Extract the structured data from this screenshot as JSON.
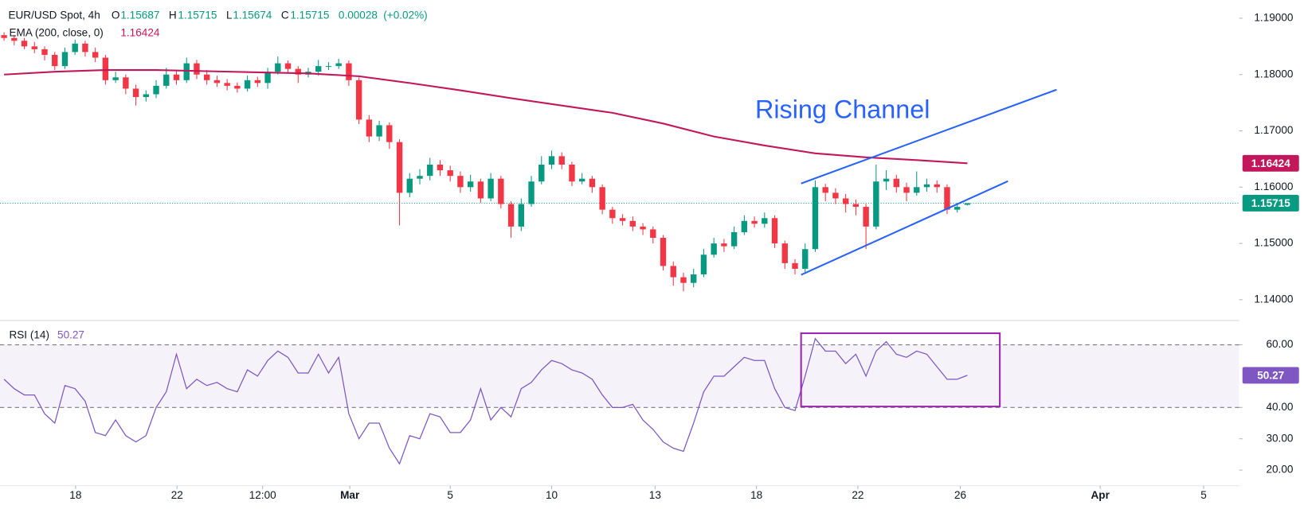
{
  "chart_data": [
    {
      "type": "candlestick",
      "title": "EUR/USD Spot, 4h",
      "ohlc_prefixes": [
        "O",
        "H",
        "L",
        "C"
      ],
      "change": 0.00028,
      "change_pct": {
        "value": 0.02,
        "label": "(+0.02%)"
      },
      "x": [
        0,
        1,
        2,
        3,
        4,
        5,
        6,
        7,
        8,
        9,
        10,
        11,
        12,
        13,
        14,
        15,
        16,
        17,
        18,
        19,
        20,
        21,
        22,
        23,
        24,
        25,
        26,
        27,
        28,
        29,
        30,
        31,
        32,
        33,
        34,
        35,
        36,
        37,
        38,
        39,
        40,
        41,
        42,
        43,
        44,
        45,
        46,
        47,
        48,
        49,
        50,
        51,
        52,
        53,
        54,
        55,
        56,
        57,
        58,
        59,
        60,
        61,
        62,
        63,
        64,
        65,
        66,
        67,
        68,
        69,
        70,
        71,
        72,
        73,
        74,
        75,
        76,
        77,
        78,
        79,
        80,
        81,
        82,
        83,
        84,
        85,
        86,
        87,
        88,
        89,
        90,
        91,
        92,
        93,
        94,
        95
      ],
      "open": [
        1.187,
        1.1865,
        1.186,
        1.185,
        1.1845,
        1.1835,
        1.1815,
        1.184,
        1.1855,
        1.184,
        1.183,
        1.179,
        1.1795,
        1.1775,
        1.176,
        1.1765,
        1.178,
        1.18,
        1.179,
        1.182,
        1.18,
        1.179,
        1.1785,
        1.178,
        1.1775,
        1.179,
        1.1785,
        1.1805,
        1.182,
        1.181,
        1.18,
        1.1805,
        1.1815,
        1.1815,
        1.182,
        1.179,
        1.172,
        1.169,
        1.171,
        1.168,
        1.159,
        1.1615,
        1.162,
        1.164,
        1.163,
        1.162,
        1.16,
        1.161,
        1.158,
        1.1615,
        1.157,
        1.153,
        1.157,
        1.161,
        1.164,
        1.1655,
        1.164,
        1.161,
        1.1615,
        1.16,
        1.156,
        1.1545,
        1.154,
        1.153,
        1.1525,
        1.151,
        1.146,
        1.144,
        1.143,
        1.1445,
        1.148,
        1.15,
        1.1495,
        1.152,
        1.154,
        1.1535,
        1.1545,
        1.15,
        1.1465,
        1.1455,
        1.149,
        1.16,
        1.159,
        1.158,
        1.157,
        1.1565,
        1.153,
        1.161,
        1.1615,
        1.16,
        1.159,
        1.16,
        1.1605,
        1.16,
        1.156,
        1.15687
      ],
      "high": [
        1.1875,
        1.187,
        1.1865,
        1.1858,
        1.185,
        1.184,
        1.1848,
        1.1862,
        1.186,
        1.1848,
        1.1835,
        1.1805,
        1.18,
        1.1782,
        1.1772,
        1.179,
        1.1812,
        1.1806,
        1.183,
        1.1826,
        1.1808,
        1.1798,
        1.1792,
        1.1786,
        1.1798,
        1.1796,
        1.1812,
        1.1832,
        1.1825,
        1.1815,
        1.1812,
        1.1826,
        1.1822,
        1.1828,
        1.1825,
        1.1795,
        1.1728,
        1.1718,
        1.1715,
        1.1685,
        1.1625,
        1.1632,
        1.1652,
        1.1648,
        1.1638,
        1.1628,
        1.1622,
        1.1615,
        1.1625,
        1.162,
        1.1575,
        1.158,
        1.162,
        1.1655,
        1.1665,
        1.1662,
        1.1645,
        1.1625,
        1.162,
        1.1605,
        1.1565,
        1.1552,
        1.1548,
        1.1536,
        1.153,
        1.1515,
        1.1468,
        1.1448,
        1.1455,
        1.149,
        1.151,
        1.1508,
        1.153,
        1.155,
        1.1548,
        1.1555,
        1.155,
        1.1505,
        1.1472,
        1.15,
        1.1612,
        1.1606,
        1.1598,
        1.1588,
        1.1578,
        1.157,
        1.164,
        1.163,
        1.1622,
        1.1608,
        1.1628,
        1.1615,
        1.1612,
        1.1605,
        1.1572,
        1.15715
      ],
      "low": [
        1.186,
        1.1852,
        1.1845,
        1.1838,
        1.1825,
        1.1808,
        1.181,
        1.1835,
        1.1832,
        1.1822,
        1.1782,
        1.1785,
        1.1765,
        1.1745,
        1.1752,
        1.1758,
        1.1775,
        1.1782,
        1.1785,
        1.1792,
        1.1782,
        1.1778,
        1.1772,
        1.1768,
        1.177,
        1.1778,
        1.1775,
        1.18,
        1.1802,
        1.1785,
        1.1795,
        1.1798,
        1.1808,
        1.181,
        1.178,
        1.1712,
        1.168,
        1.1682,
        1.1668,
        1.1532,
        1.1582,
        1.1605,
        1.1612,
        1.162,
        1.161,
        1.159,
        1.1592,
        1.1572,
        1.1575,
        1.1562,
        1.151,
        1.1522,
        1.1565,
        1.1605,
        1.1632,
        1.1632,
        1.1602,
        1.1605,
        1.159,
        1.1552,
        1.1535,
        1.1532,
        1.1522,
        1.1515,
        1.15,
        1.1452,
        1.1425,
        1.1415,
        1.1422,
        1.144,
        1.1475,
        1.1485,
        1.149,
        1.1515,
        1.1528,
        1.1528,
        1.1492,
        1.1455,
        1.1445,
        1.1448,
        1.1485,
        1.1575,
        1.157,
        1.1555,
        1.155,
        1.149,
        1.1525,
        1.1595,
        1.159,
        1.1575,
        1.1585,
        1.1592,
        1.159,
        1.1552,
        1.1555,
        1.15674
      ],
      "close": [
        1.1865,
        1.186,
        1.185,
        1.1845,
        1.1835,
        1.1815,
        1.184,
        1.1855,
        1.184,
        1.183,
        1.179,
        1.1795,
        1.1775,
        1.176,
        1.1765,
        1.178,
        1.18,
        1.179,
        1.182,
        1.18,
        1.179,
        1.1785,
        1.178,
        1.1775,
        1.179,
        1.1785,
        1.1805,
        1.182,
        1.181,
        1.18,
        1.1805,
        1.1815,
        1.1815,
        1.182,
        1.179,
        1.172,
        1.169,
        1.171,
        1.168,
        1.159,
        1.1615,
        1.162,
        1.164,
        1.163,
        1.162,
        1.16,
        1.161,
        1.158,
        1.1615,
        1.157,
        1.153,
        1.157,
        1.161,
        1.164,
        1.1655,
        1.164,
        1.161,
        1.1615,
        1.16,
        1.156,
        1.1545,
        1.154,
        1.153,
        1.1525,
        1.151,
        1.146,
        1.144,
        1.143,
        1.1445,
        1.148,
        1.15,
        1.1495,
        1.152,
        1.154,
        1.1535,
        1.1545,
        1.15,
        1.1465,
        1.1455,
        1.149,
        1.16,
        1.159,
        1.158,
        1.157,
        1.1565,
        1.153,
        1.161,
        1.1615,
        1.16,
        1.159,
        1.16,
        1.1605,
        1.16,
        1.156,
        1.1565,
        1.15715
      ],
      "up_color": "#089981",
      "down_color": "#f23645",
      "xlim": [
        -0.4,
        121.8
      ],
      "ylim": [
        1.13646,
        1.19324
      ],
      "yticks": [
        {
          "value": 1.14,
          "label": "1.14000"
        },
        {
          "value": 1.15,
          "label": "1.15000"
        },
        {
          "value": 1.16,
          "label": "1.16000"
        },
        {
          "value": 1.17,
          "label": "1.17000"
        },
        {
          "value": 1.18,
          "label": "1.18000"
        },
        {
          "value": 1.19,
          "label": "1.19000"
        }
      ],
      "series": [
        {
          "name": "EMA (200, close, 0)",
          "color": "#c2185b",
          "x": [
            0,
            5,
            10,
            15,
            20,
            25,
            30,
            35,
            40,
            45,
            50,
            55,
            60,
            65,
            70,
            75,
            80,
            85,
            90,
            95
          ],
          "values": [
            1.18,
            1.1805,
            1.1808,
            1.1808,
            1.1806,
            1.1804,
            1.1802,
            1.1797,
            1.1785,
            1.1772,
            1.1758,
            1.1745,
            1.1732,
            1.1713,
            1.169,
            1.1674,
            1.166,
            1.1653,
            1.1648,
            1.16424
          ]
        }
      ],
      "annotation": "Rising Channel",
      "channel_color": "#2962ff",
      "channel": [
        {
          "x": [
            78.6,
            103.8
          ],
          "y": [
            1.16065,
            1.17732
          ]
        },
        {
          "x": [
            78.6,
            99.0
          ],
          "y": [
            1.14442,
            1.16106
          ]
        }
      ]
    },
    {
      "type": "line",
      "x": [
        0,
        1,
        2,
        3,
        4,
        5,
        6,
        7,
        8,
        9,
        10,
        11,
        12,
        13,
        14,
        15,
        16,
        17,
        18,
        19,
        20,
        21,
        22,
        23,
        24,
        25,
        26,
        27,
        28,
        29,
        30,
        31,
        32,
        33,
        34,
        35,
        36,
        37,
        38,
        39,
        40,
        41,
        42,
        43,
        44,
        45,
        46,
        47,
        48,
        49,
        50,
        51,
        52,
        53,
        54,
        55,
        56,
        57,
        58,
        59,
        60,
        61,
        62,
        63,
        64,
        65,
        66,
        67,
        68,
        69,
        70,
        71,
        72,
        73,
        74,
        75,
        76,
        77,
        78,
        79,
        80,
        81,
        82,
        83,
        84,
        85,
        86,
        87,
        88,
        89,
        90,
        91,
        92,
        93,
        94,
        95
      ],
      "series": [
        {
          "name": "RSI (14)",
          "color": "#7e57c2",
          "values": [
            49,
            46,
            44,
            44,
            38,
            35,
            47,
            46,
            42,
            32,
            31,
            36,
            31,
            29,
            31,
            40,
            45,
            57,
            46,
            49,
            47,
            48,
            46,
            45,
            52,
            50,
            55,
            58,
            56,
            51,
            51,
            57,
            51,
            56,
            38,
            30,
            35,
            35,
            27,
            22,
            31,
            30,
            38,
            37,
            32,
            32,
            36,
            46,
            36,
            40,
            37,
            46,
            48,
            52,
            55,
            54,
            52,
            51,
            49,
            44,
            40,
            40,
            41,
            36,
            33,
            29,
            27,
            26,
            35,
            45,
            50,
            50,
            53,
            56,
            55,
            55,
            46,
            40,
            39,
            50,
            62,
            58,
            58,
            54,
            57,
            50,
            58,
            61,
            57,
            56,
            58,
            57,
            53,
            49,
            49,
            50.27
          ]
        }
      ],
      "band": [
        40,
        60
      ],
      "band_color": "#7e57c2",
      "box": {
        "x": [
          78.6,
          98.2
        ],
        "y": [
          40.3,
          63.7
        ],
        "color": "#9c27b0"
      },
      "xlim": [
        -0.4,
        121.8
      ],
      "ylim": [
        15,
        67.5
      ],
      "yticks": [
        {
          "value": 20,
          "label": "20.00"
        },
        {
          "value": 30,
          "label": "30.00"
        },
        {
          "value": 40,
          "label": "40.00"
        },
        {
          "value": 60,
          "label": "60.00"
        }
      ],
      "xticks": [
        {
          "value": 7.05,
          "label": "18"
        },
        {
          "value": 17.06,
          "label": "22"
        },
        {
          "value": 25.5,
          "label": "12:00"
        },
        {
          "value": 34.1,
          "label": "Mar"
        },
        {
          "value": 44.0,
          "label": "5"
        },
        {
          "value": 54.0,
          "label": "10"
        },
        {
          "value": 64.2,
          "label": "13"
        },
        {
          "value": 74.2,
          "label": "18"
        },
        {
          "value": 84.2,
          "label": "22"
        },
        {
          "value": 94.3,
          "label": "26"
        },
        {
          "value": 108.1,
          "label": "Apr"
        },
        {
          "value": 118.3,
          "label": "5"
        }
      ]
    }
  ]
}
